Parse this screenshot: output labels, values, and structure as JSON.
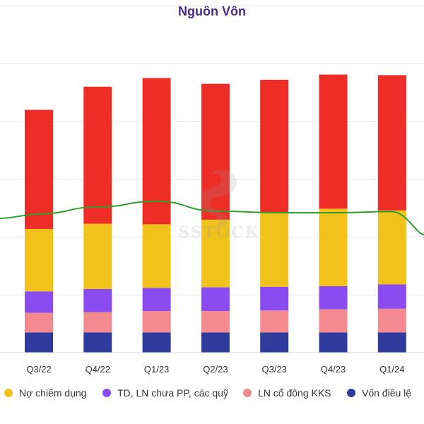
{
  "chart_data": {
    "type": "bar",
    "stacked": true,
    "title": "Nguồn Vốn",
    "categories": [
      "Q3/22",
      "Q4/22",
      "Q1/23",
      "Q2/23",
      "Q3/23",
      "Q4/23",
      "Q1/24"
    ],
    "series": [
      {
        "name": "Vốn điều lệ",
        "color": "#2f3c9e",
        "values": [
          35,
          35,
          35,
          35,
          35,
          35,
          35
        ]
      },
      {
        "name": "LN cổ đông KKS",
        "color": "#f38a8f",
        "values": [
          34,
          35,
          37,
          37,
          38,
          40,
          41
        ]
      },
      {
        "name": "TD, LN chưa PP, các quỹ",
        "color": "#8a4cf0",
        "values": [
          37,
          40,
          40,
          41,
          41,
          40,
          42
        ]
      },
      {
        "name": "Nợ chiếm dụng",
        "color": "#f0c21b",
        "values": [
          108,
          113,
          110,
          117,
          128,
          134,
          128
        ]
      },
      {
        "name": "",
        "color": "#ee2d27",
        "values": [
          206,
          237,
          253,
          235,
          230,
          232,
          234
        ]
      }
    ],
    "line": {
      "color": "#2e9e2e",
      "values": [
        240,
        252,
        262,
        245,
        242,
        242,
        244
      ]
    },
    "ylim": [
      0,
      610
    ],
    "grid": true,
    "legend_position": "bottom",
    "legend_order": [
      "Nợ chiếm dụng",
      "TD, LN chưa PP, các quỹ",
      "LN cổ đông KKS",
      "Vốn điều lệ"
    ],
    "watermark": "SSTOCK"
  }
}
